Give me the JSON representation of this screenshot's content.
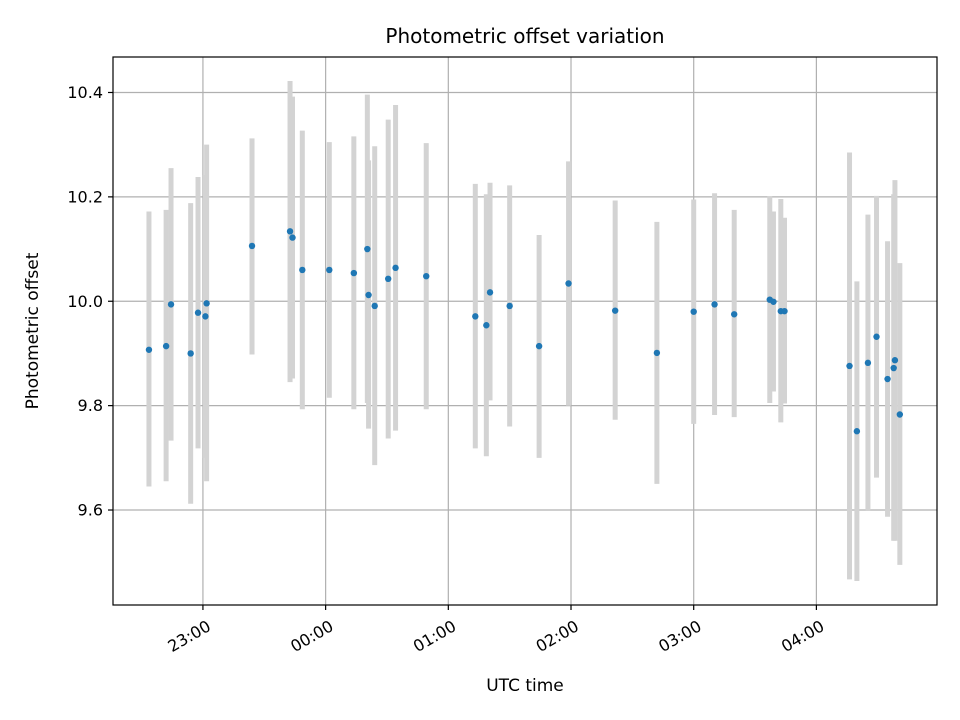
{
  "chart_data": {
    "type": "scatter",
    "title": "Photometric offset variation",
    "xlabel": "UTC time",
    "ylabel": "Photometric offset",
    "x_units": "hours since 23:00 UTC",
    "xlim": [
      -0.733,
      5.983
    ],
    "ylim": [
      9.418,
      10.468
    ],
    "grid": true,
    "x_ticks": [
      {
        "value": 0,
        "label": "23:00"
      },
      {
        "value": 1,
        "label": "00:00"
      },
      {
        "value": 2,
        "label": "01:00"
      },
      {
        "value": 3,
        "label": "02:00"
      },
      {
        "value": 4,
        "label": "03:00"
      },
      {
        "value": 5,
        "label": "04:00"
      }
    ],
    "y_ticks": [
      {
        "value": 9.6,
        "label": "9.6"
      },
      {
        "value": 9.8,
        "label": "9.8"
      },
      {
        "value": 10.0,
        "label": "10.0"
      },
      {
        "value": 10.2,
        "label": "10.2"
      },
      {
        "value": 10.4,
        "label": "10.4"
      }
    ],
    "colors": {
      "marker": "#1f77b4",
      "errorbar": "#d3d3d3",
      "grid": "#b0b0b0"
    },
    "series": [
      {
        "points": [
          {
            "x": -0.44,
            "y": 9.907,
            "lo": 9.645,
            "hi": 10.172
          },
          {
            "x": -0.3,
            "y": 9.914,
            "lo": 9.655,
            "hi": 10.175
          },
          {
            "x": -0.26,
            "y": 9.994,
            "lo": 9.733,
            "hi": 10.255
          },
          {
            "x": -0.1,
            "y": 9.9,
            "lo": 9.612,
            "hi": 10.188
          },
          {
            "x": -0.04,
            "y": 9.978,
            "lo": 9.718,
            "hi": 10.238
          },
          {
            "x": 0.02,
            "y": 9.971,
            "lo": 9.7,
            "hi": 10.242
          },
          {
            "x": 0.03,
            "y": 9.996,
            "lo": 9.655,
            "hi": 10.3
          },
          {
            "x": 0.4,
            "y": 10.106,
            "lo": 9.898,
            "hi": 10.312
          },
          {
            "x": 0.71,
            "y": 10.134,
            "lo": 9.845,
            "hi": 10.422
          },
          {
            "x": 0.73,
            "y": 10.122,
            "lo": 9.852,
            "hi": 10.392
          },
          {
            "x": 0.81,
            "y": 10.06,
            "lo": 9.793,
            "hi": 10.327
          },
          {
            "x": 1.03,
            "y": 10.06,
            "lo": 9.815,
            "hi": 10.305
          },
          {
            "x": 1.23,
            "y": 10.054,
            "lo": 9.793,
            "hi": 10.316
          },
          {
            "x": 1.34,
            "y": 10.1,
            "lo": 9.805,
            "hi": 10.396
          },
          {
            "x": 1.35,
            "y": 10.012,
            "lo": 9.756,
            "hi": 10.27
          },
          {
            "x": 1.4,
            "y": 9.991,
            "lo": 9.686,
            "hi": 10.297
          },
          {
            "x": 1.51,
            "y": 10.043,
            "lo": 9.737,
            "hi": 10.348
          },
          {
            "x": 1.57,
            "y": 10.064,
            "lo": 9.752,
            "hi": 10.376
          },
          {
            "x": 1.82,
            "y": 10.048,
            "lo": 9.793,
            "hi": 10.303
          },
          {
            "x": 2.22,
            "y": 9.971,
            "lo": 9.718,
            "hi": 10.225
          },
          {
            "x": 2.31,
            "y": 9.954,
            "lo": 9.703,
            "hi": 10.205
          },
          {
            "x": 2.34,
            "y": 10.017,
            "lo": 9.81,
            "hi": 10.227
          },
          {
            "x": 2.5,
            "y": 9.991,
            "lo": 9.76,
            "hi": 10.222
          },
          {
            "x": 2.74,
            "y": 9.914,
            "lo": 9.7,
            "hi": 10.127
          },
          {
            "x": 2.98,
            "y": 10.034,
            "lo": 9.8,
            "hi": 10.268
          },
          {
            "x": 3.36,
            "y": 9.982,
            "lo": 9.773,
            "hi": 10.193
          },
          {
            "x": 3.7,
            "y": 9.901,
            "lo": 9.65,
            "hi": 10.152
          },
          {
            "x": 4.0,
            "y": 9.98,
            "lo": 9.765,
            "hi": 10.195
          },
          {
            "x": 4.17,
            "y": 9.994,
            "lo": 9.782,
            "hi": 10.207
          },
          {
            "x": 4.33,
            "y": 9.975,
            "lo": 9.778,
            "hi": 10.175
          },
          {
            "x": 4.62,
            "y": 10.003,
            "lo": 9.805,
            "hi": 10.201
          },
          {
            "x": 4.65,
            "y": 9.999,
            "lo": 9.827,
            "hi": 10.172
          },
          {
            "x": 4.71,
            "y": 9.981,
            "lo": 9.768,
            "hi": 10.196
          },
          {
            "x": 4.74,
            "y": 9.981,
            "lo": 9.804,
            "hi": 10.16
          },
          {
            "x": 5.27,
            "y": 9.876,
            "lo": 9.467,
            "hi": 10.285
          },
          {
            "x": 5.33,
            "y": 9.751,
            "lo": 9.464,
            "hi": 10.038
          },
          {
            "x": 5.42,
            "y": 9.882,
            "lo": 9.598,
            "hi": 10.166
          },
          {
            "x": 5.49,
            "y": 9.932,
            "lo": 9.662,
            "hi": 10.202
          },
          {
            "x": 5.58,
            "y": 9.851,
            "lo": 9.587,
            "hi": 10.115
          },
          {
            "x": 5.63,
            "y": 9.872,
            "lo": 9.541,
            "hi": 10.205
          },
          {
            "x": 5.64,
            "y": 9.887,
            "lo": 9.541,
            "hi": 10.232
          },
          {
            "x": 5.68,
            "y": 9.783,
            "lo": 9.495,
            "hi": 10.073
          }
        ]
      }
    ]
  }
}
